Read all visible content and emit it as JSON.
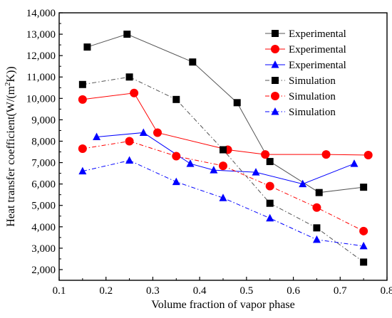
{
  "chart_data": {
    "type": "line",
    "xlabel": "Volume fraction of vapor phase",
    "ylabel_main": "Heat transfer coefficient(W/(m",
    "ylabel_sup": "2",
    "ylabel_end": "K))",
    "xlim": [
      0.1,
      0.8
    ],
    "ylim": [
      1500,
      14000
    ],
    "xticks": [
      0.1,
      0.2,
      0.3,
      0.4,
      0.5,
      0.6,
      0.7,
      0.8
    ],
    "xtick_labels": [
      "0.1",
      "0.2",
      "0.3",
      "0.4",
      "0.5",
      "0.6",
      "0.7",
      "0.8"
    ],
    "yticks": [
      2000,
      3000,
      4000,
      5000,
      6000,
      7000,
      8000,
      9000,
      10000,
      11000,
      12000,
      13000,
      14000
    ],
    "ytick_labels": [
      "2,000",
      "3,000",
      "4,000",
      "5,000",
      "6,000",
      "7,000",
      "8,000",
      "9,000",
      "10,000",
      "11,000",
      "12,000",
      "13,000",
      "14,000"
    ],
    "grid": false,
    "legend_position": "top-right",
    "series": [
      {
        "name": "Experimental",
        "marker": "square",
        "color": "#000000",
        "line_color": "#555555",
        "dash": "solid",
        "x": [
          0.16,
          0.245,
          0.385,
          0.48,
          0.55,
          0.655,
          0.75
        ],
        "y": [
          12400,
          13000,
          11700,
          9800,
          7050,
          5600,
          5850
        ]
      },
      {
        "name": "Experimental",
        "marker": "circle",
        "color": "#ff0000",
        "line_color": "#ff0000",
        "dash": "solid",
        "x": [
          0.15,
          0.26,
          0.31,
          0.46,
          0.54,
          0.67,
          0.76
        ],
        "y": [
          9950,
          10250,
          8400,
          7600,
          7380,
          7380,
          7350
        ]
      },
      {
        "name": "Experimental",
        "marker": "triangle",
        "color": "#0000ff",
        "line_color": "#0000ff",
        "dash": "solid",
        "x": [
          0.18,
          0.28,
          0.38,
          0.43,
          0.52,
          0.62,
          0.73
        ],
        "y": [
          8200,
          8400,
          6950,
          6650,
          6550,
          6000,
          6950
        ]
      },
      {
        "name": "Simulation",
        "marker": "square",
        "color": "#000000",
        "line_color": "#555555",
        "dash": "dashdot",
        "x": [
          0.15,
          0.25,
          0.35,
          0.45,
          0.55,
          0.65,
          0.75
        ],
        "y": [
          10650,
          11000,
          9950,
          7600,
          5100,
          3950,
          2350
        ]
      },
      {
        "name": "Simulation",
        "marker": "circle",
        "color": "#ff0000",
        "line_color": "#ff0000",
        "dash": "dashdot",
        "x": [
          0.15,
          0.25,
          0.35,
          0.45,
          0.55,
          0.65,
          0.75
        ],
        "y": [
          7650,
          8000,
          7300,
          6850,
          5900,
          4900,
          3800
        ]
      },
      {
        "name": "Simulation",
        "marker": "triangle",
        "color": "#0000ff",
        "line_color": "#0000ff",
        "dash": "dashdot",
        "x": [
          0.15,
          0.25,
          0.35,
          0.45,
          0.55,
          0.65,
          0.75
        ],
        "y": [
          6600,
          7100,
          6100,
          5350,
          4400,
          3400,
          3100
        ]
      }
    ]
  }
}
